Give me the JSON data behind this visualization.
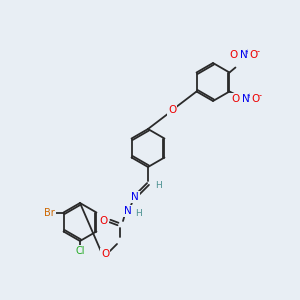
{
  "bg_color": "#e8eef4",
  "bond_color": "#2a2a2a",
  "atom_colors": {
    "N": "#0000ee",
    "O": "#ee0000",
    "Cl": "#22aa22",
    "Br": "#cc6600",
    "H": "#4a9090",
    "C": "#2a2a2a"
  },
  "figsize": [
    3.0,
    3.0
  ],
  "dpi": 100
}
